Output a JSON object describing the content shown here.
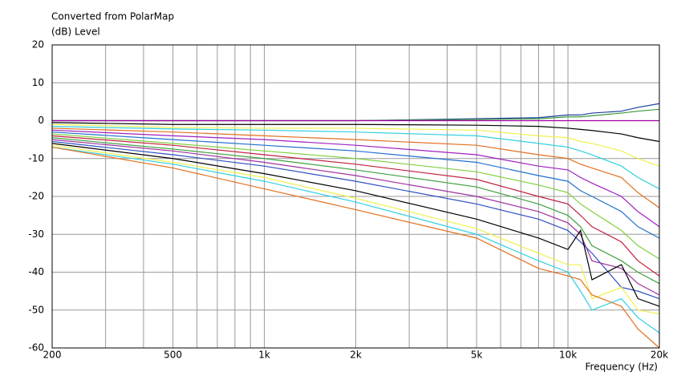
{
  "chart_data": {
    "type": "line",
    "title": "Converted from PolarMap",
    "ylabel": "(dB)  Level",
    "xlabel": "Frequency  (Hz)",
    "xscale": "log",
    "grid": true,
    "xlim": [
      200,
      20000
    ],
    "ylim": [
      -60,
      20
    ],
    "xticks": [
      200,
      500,
      {
        "value": 1000,
        "label": "1k"
      },
      {
        "value": 2000,
        "label": "2k"
      },
      {
        "value": 5000,
        "label": "5k"
      },
      {
        "value": 10000,
        "label": "10k"
      },
      {
        "value": 20000,
        "label": "20k"
      }
    ],
    "xminor": [
      300,
      400,
      600,
      700,
      800,
      900,
      3000,
      4000,
      6000,
      7000,
      8000,
      9000
    ],
    "yticks": [
      -60,
      -50,
      -40,
      -30,
      -20,
      -10,
      0,
      10,
      20
    ],
    "x": [
      200,
      500,
      1000,
      2000,
      5000,
      8000,
      10000,
      11000,
      12000,
      15000,
      17000,
      20000
    ],
    "series": [
      {
        "color": "#1f3f9f",
        "values": [
          0,
          0,
          0,
          0,
          0.5,
          0.8,
          1.5,
          1.5,
          2,
          2.5,
          3.5,
          4.5
        ]
      },
      {
        "color": "#3c9a3c",
        "values": [
          0,
          0,
          0,
          0,
          0.3,
          0.5,
          1,
          1,
          1.3,
          2,
          2.5,
          3
        ]
      },
      {
        "color": "#a000a0",
        "values": [
          0,
          0,
          0,
          0,
          0,
          0,
          0,
          0,
          0,
          0,
          0,
          0
        ]
      },
      {
        "color": "#000000",
        "values": [
          -0.5,
          -1,
          -1,
          -1,
          -1.2,
          -1.5,
          -2,
          -2.3,
          -2.6,
          -3.5,
          -4.5,
          -5.5
        ]
      },
      {
        "color": "#f0f050",
        "values": [
          -1,
          -1.8,
          -2,
          -2,
          -2.5,
          -4,
          -4.5,
          -5.5,
          -6,
          -8,
          -10,
          -12
        ]
      },
      {
        "color": "#30d0e0",
        "values": [
          -1.5,
          -2.2,
          -2.5,
          -3,
          -4,
          -6,
          -7,
          -8,
          -9,
          -12,
          -15,
          -18
        ]
      },
      {
        "color": "#e07020",
        "values": [
          -2,
          -3,
          -4,
          -5,
          -6.5,
          -9,
          -10,
          -11.5,
          -12.5,
          -15,
          -19,
          -23
        ]
      },
      {
        "color": "#a020c0",
        "values": [
          -2.5,
          -4,
          -5,
          -6.5,
          -9,
          -12,
          -13,
          -15,
          -16.5,
          -20,
          -24,
          -28
        ]
      },
      {
        "color": "#2070d0",
        "values": [
          -3,
          -5,
          -6.5,
          -8,
          -11,
          -14.5,
          -16,
          -18.5,
          -20,
          -24,
          -28,
          -31
        ]
      },
      {
        "color": "#80d040",
        "values": [
          -3.5,
          -6,
          -8,
          -10,
          -13.5,
          -17,
          -19,
          -22,
          -24,
          -29,
          -33,
          -36.5
        ]
      },
      {
        "color": "#c02040",
        "values": [
          -4,
          -6.5,
          -9,
          -11.5,
          -15.5,
          -20,
          -22,
          -25,
          -28,
          -32,
          -37,
          -41
        ]
      },
      {
        "color": "#40a040",
        "values": [
          -4.5,
          -7.5,
          -10,
          -13,
          -17.5,
          -22,
          -25,
          -28,
          -33,
          -37,
          -40,
          -43
        ]
      },
      {
        "color": "#a030a0",
        "values": [
          -5,
          -8,
          -11,
          -14.5,
          -20,
          -24,
          -27,
          -30,
          -37,
          -39,
          -43,
          -46
        ]
      },
      {
        "color": "#3050c0",
        "values": [
          -5.5,
          -9,
          -12,
          -16,
          -22,
          -26,
          -29,
          -32,
          -35,
          -44,
          -45,
          -47
        ]
      },
      {
        "color": "#000000",
        "values": [
          -6,
          -10,
          -14,
          -18.5,
          -26,
          -31,
          -34,
          -29,
          -42,
          -38,
          -47,
          -49
        ]
      },
      {
        "color": "#f0f050",
        "values": [
          -6.5,
          -11,
          -15,
          -20.5,
          -28.5,
          -35,
          -38,
          -38,
          -47,
          -44,
          -50,
          -51
        ]
      },
      {
        "color": "#30d0e0",
        "values": [
          -7,
          -11.5,
          -16,
          -21.5,
          -30,
          -37,
          -40,
          -45,
          -50,
          -47,
          -52,
          -56
        ]
      },
      {
        "color": "#e07020",
        "values": [
          -7,
          -12.5,
          -18,
          -23.5,
          -31,
          -39,
          -41,
          -42,
          -46,
          -49,
          -55,
          -60
        ]
      }
    ]
  }
}
